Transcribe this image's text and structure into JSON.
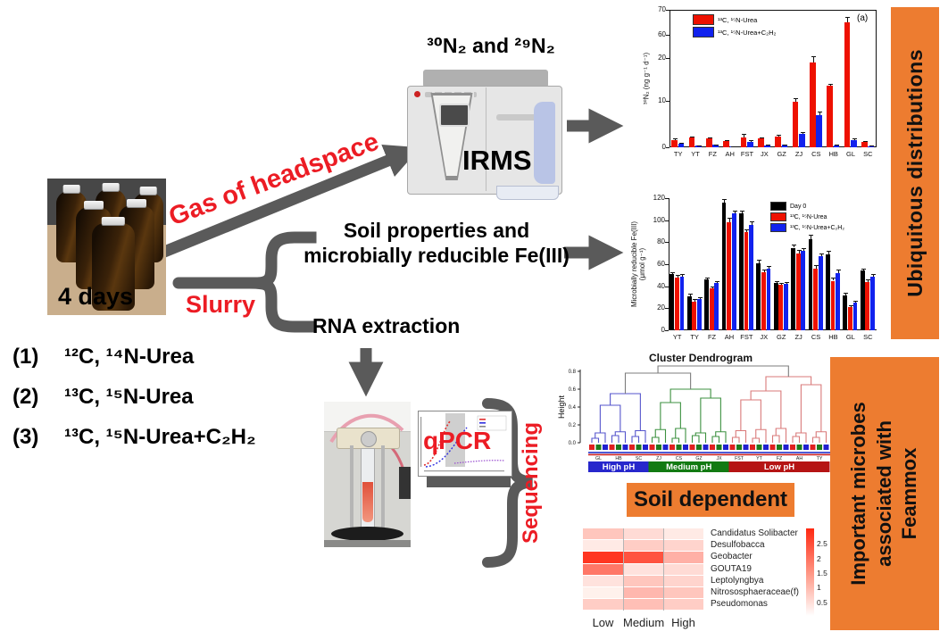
{
  "colors": {
    "accent_orange": "#ED7C30",
    "arrow_gray": "#5A5A5A",
    "label_red": "#EC1C24",
    "bar_red": "#EE1100",
    "bar_blue": "#1122EE",
    "bar_black": "#000000"
  },
  "labels": {
    "n2_title": "³⁰N₂ and ²⁹N₂",
    "irms": "IRMS",
    "gas_of_headspace": "Gas of headspace",
    "four_days": "4 days",
    "slurry": "Slurry",
    "soil_properties_line1": "Soil properties and",
    "soil_properties_line2": "microbially  reducible Fe(III)",
    "rna_extraction": "RNA extraction",
    "qpcr": "qPCR",
    "sequencing": "Sequencing",
    "soil_dependent": "Soil dependent",
    "ubiquitous": "Ubiquitous  distributions",
    "important_microbes": "Important microbes associated with Feammox"
  },
  "treatments": [
    {
      "num": "(1)",
      "formula": "¹²C, ¹⁴N-Urea"
    },
    {
      "num": "(2)",
      "formula": "¹³C, ¹⁵N-Urea"
    },
    {
      "num": "(3)",
      "formula": "¹³C, ¹⁵N-Urea+C₂H₂"
    }
  ],
  "chart_data": [
    {
      "id": "n2_production",
      "type": "bar",
      "annotation": "(a)",
      "ylabel": "³⁰N₂ (ng g⁻¹ d⁻¹)",
      "yticks": [
        0,
        10,
        20,
        60,
        70
      ],
      "axis_break": true,
      "grid": false,
      "legend_position": "top-left",
      "categories": [
        "TY",
        "YT",
        "FZ",
        "AH",
        "FST",
        "JX",
        "GZ",
        "ZJ",
        "CS",
        "HB",
        "GL",
        "SC"
      ],
      "series": [
        {
          "name": "¹³C, ¹⁵N-Urea",
          "color": "#EE1100",
          "values": [
            1.6,
            2.1,
            1.9,
            1.3,
            2.1,
            1.9,
            2.3,
            9.8,
            19.0,
            13.5,
            65.0,
            1.2
          ],
          "errors": [
            0.3,
            0.2,
            0.2,
            0.2,
            0.8,
            0.2,
            0.3,
            0.8,
            3.5,
            0.4,
            2.0,
            0.2
          ]
        },
        {
          "name": "¹³C, ¹⁵N-Urea+C₂H₂",
          "color": "#1122EE",
          "values": [
            0.8,
            0.3,
            0.5,
            0.15,
            1.2,
            0.4,
            0.5,
            2.9,
            6.8,
            0.4,
            1.6,
            0.25
          ],
          "errors": [
            0.2,
            0.1,
            0.1,
            0.05,
            0.3,
            0.1,
            0.1,
            0.4,
            0.8,
            0.1,
            0.3,
            0.05
          ]
        }
      ]
    },
    {
      "id": "reducible_fe",
      "type": "bar",
      "ylabel": "Microbially reducible Fe(III)",
      "ylabel2": "(μmol g⁻¹)",
      "yticks": [
        0,
        20,
        40,
        60,
        80,
        100,
        120
      ],
      "ylim": [
        0,
        120
      ],
      "grid": false,
      "legend_position": "top-right",
      "categories": [
        "YT",
        "TY",
        "FZ",
        "AH",
        "FST",
        "JX",
        "GZ",
        "ZJ",
        "CS",
        "HB",
        "GL",
        "SC"
      ],
      "series": [
        {
          "name": "Day 0",
          "color": "#000000",
          "values": [
            51,
            31,
            46,
            116,
            106,
            61,
            43,
            75,
            83,
            69,
            32,
            54
          ],
          "errors": [
            2,
            2,
            2,
            3,
            3,
            3,
            2,
            3,
            4,
            3,
            2,
            2
          ]
        },
        {
          "name": "¹³C, ¹⁵N-Urea",
          "color": "#EE1100",
          "values": [
            48,
            26,
            38,
            98,
            89,
            53,
            41,
            70,
            56,
            45,
            21,
            44
          ],
          "errors": [
            2,
            2,
            2,
            4,
            3,
            2,
            2,
            3,
            3,
            3,
            2,
            2
          ]
        },
        {
          "name": "¹³C, ¹⁵N-Urea+C₂H₂",
          "color": "#1122EE",
          "values": [
            49,
            28,
            43,
            106,
            96,
            56,
            42,
            72,
            67,
            52,
            25,
            49
          ],
          "errors": [
            2,
            2,
            2,
            3,
            3,
            2,
            2,
            3,
            3,
            3,
            2,
            2
          ]
        }
      ]
    },
    {
      "id": "cluster_dendrogram",
      "type": "dendrogram",
      "title": "Cluster Dendrogram",
      "ylabel": "Height",
      "yticks": [
        0.0,
        0.2,
        0.4,
        0.6,
        0.8
      ],
      "leaf_colors": [
        "#E02020",
        "#1E7A1E",
        "#2020D0"
      ],
      "replicates_per_sample": 3,
      "clusters": [
        {
          "label": "High pH",
          "color": "#5555CC",
          "bar_color": "#2727CC",
          "samples": [
            "GL",
            "HB",
            "SC"
          ],
          "merge_heights": [
            0.42,
            0.55
          ]
        },
        {
          "label": "Medium pH",
          "color": "#3D9140",
          "bar_color": "#127A12",
          "samples": [
            "ZJ",
            "CS",
            "GZ",
            "JX"
          ],
          "merge_heights": [
            0.45,
            0.5,
            0.6
          ]
        },
        {
          "label": "Low pH",
          "color": "#D97A7A",
          "bar_color": "#B51414",
          "samples": [
            "FST",
            "YT",
            "FZ",
            "AH",
            "TY"
          ],
          "merge_heights": [
            0.48,
            0.58,
            0.65,
            0.74
          ]
        }
      ],
      "top_merge_heights": [
        0.78,
        0.86
      ],
      "strip_line_colors": [
        "#2233CC",
        "#CC2222"
      ]
    },
    {
      "id": "genus_heatmap",
      "type": "heatmap",
      "columns": [
        "Low",
        "Medium",
        "High"
      ],
      "rows": [
        "Candidatus Solibacter",
        "Desulfobacca",
        "Geobacter",
        "GOUTA19",
        "Leptolyngbya",
        "Nitrososphaeraceae(f)",
        "Pseudomonas"
      ],
      "values": [
        [
          0.8,
          0.5,
          0.3
        ],
        [
          0.3,
          0.7,
          0.6
        ],
        [
          2.8,
          2.4,
          1.1
        ],
        [
          1.9,
          0.4,
          0.5
        ],
        [
          0.4,
          0.8,
          0.6
        ],
        [
          0.2,
          1.0,
          0.8
        ],
        [
          0.7,
          0.9,
          0.7
        ]
      ],
      "scale_ticks": [
        2.5,
        2,
        1.5,
        1,
        0.5
      ],
      "scale_range": [
        0,
        3
      ]
    }
  ]
}
